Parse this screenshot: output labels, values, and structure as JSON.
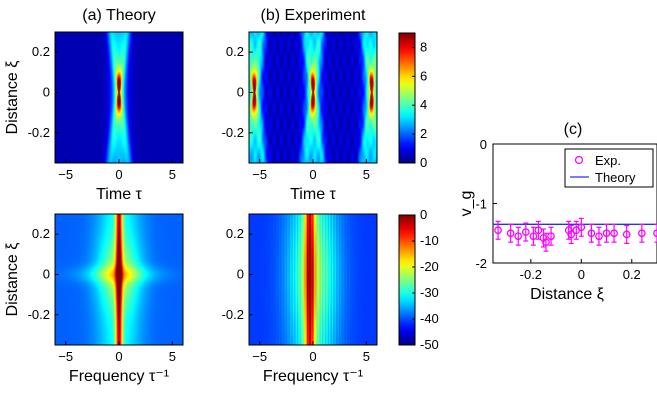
{
  "figure": {
    "colors": {
      "colormap": [
        "#00008f",
        "#0000ff",
        "#0080ff",
        "#00ffff",
        "#80ff80",
        "#ffff00",
        "#ff8000",
        "#ff0000",
        "#800000"
      ],
      "theory_line": "#2030ff",
      "exp_marker": "#ff00ff"
    }
  },
  "chart_data": [
    {
      "id": "a-top",
      "type": "heatmap",
      "title": "(a) Theory",
      "xlabel": "Time τ",
      "ylabel": "Distance ξ",
      "xlim": [
        -6,
        6
      ],
      "ylim": [
        -0.35,
        0.3
      ],
      "xticks": [
        "-5",
        "0",
        "5"
      ],
      "yticks": [
        "0.2",
        "0",
        "-0.2"
      ],
      "description_values": {
        "peak_positions_tau": [
          0
        ],
        "peak_xi": 0
      }
    },
    {
      "id": "b-top",
      "type": "heatmap",
      "title": "(b) Experiment",
      "xlabel": "Time τ",
      "ylabel": "",
      "xlim": [
        -6,
        6
      ],
      "ylim": [
        -0.35,
        0.3
      ],
      "xticks": [
        "-5",
        "0",
        "5"
      ],
      "yticks": [
        "0.2",
        "0",
        "-0.2"
      ],
      "colorbar": {
        "range": [
          0,
          9
        ],
        "ticks": [
          "8",
          "6",
          "4",
          "2",
          "0"
        ]
      },
      "description_values": {
        "peak_positions_tau": [
          -5.5,
          0,
          5.5
        ],
        "peak_xi": 0
      }
    },
    {
      "id": "a-bottom",
      "type": "heatmap",
      "title": "",
      "xlabel": "Frequency τ⁻¹",
      "ylabel": "Distance ξ",
      "xlim": [
        -6,
        6
      ],
      "ylim": [
        -0.35,
        0.3
      ],
      "xticks": [
        "-5",
        "0",
        "5"
      ],
      "yticks": [
        "0.2",
        "0",
        "-0.2"
      ]
    },
    {
      "id": "b-bottom",
      "type": "heatmap",
      "title": "",
      "xlabel": "Frequency τ⁻¹",
      "ylabel": "",
      "xlim": [
        -6,
        6
      ],
      "ylim": [
        -0.35,
        0.3
      ],
      "xticks": [
        "-5",
        "0",
        "5"
      ],
      "yticks": [
        "0.2",
        "0",
        "-0.2"
      ],
      "colorbar": {
        "range": [
          -50,
          0
        ],
        "ticks": [
          "0",
          "-10",
          "-20",
          "-30",
          "-40",
          "-50"
        ]
      }
    },
    {
      "id": "c",
      "type": "scatter",
      "title": "(c)",
      "xlabel": "Distance ξ",
      "ylabel": "v_g",
      "xlim": [
        -0.35,
        0.3
      ],
      "ylim": [
        -2,
        0
      ],
      "xticks": [
        "-0.2",
        "0",
        "0.2"
      ],
      "yticks": [
        "0",
        "-1",
        "-2"
      ],
      "legend": {
        "position": "top-right",
        "entries": [
          "Exp.",
          "Theory"
        ]
      },
      "series": [
        {
          "name": "Exp.",
          "style": "circle-errorbar",
          "x": [
            -0.33,
            -0.28,
            -0.25,
            -0.22,
            -0.19,
            -0.17,
            -0.15,
            -0.14,
            -0.12,
            -0.05,
            -0.04,
            -0.02,
            0.0,
            0.04,
            0.07,
            0.1,
            0.13,
            0.18,
            0.24,
            0.3
          ],
          "y": [
            -1.45,
            -1.5,
            -1.55,
            -1.48,
            -1.55,
            -1.45,
            -1.58,
            -1.65,
            -1.55,
            -1.45,
            -1.52,
            -1.45,
            -1.4,
            -1.5,
            -1.55,
            -1.5,
            -1.5,
            -1.52,
            -1.5,
            -1.5
          ],
          "err": [
            0.15,
            0.15,
            0.15,
            0.15,
            0.15,
            0.15,
            0.15,
            0.15,
            0.15,
            0.15,
            0.15,
            0.15,
            0.15,
            0.15,
            0.15,
            0.15,
            0.15,
            0.15,
            0.15,
            0.15
          ]
        },
        {
          "name": "Theory",
          "style": "line",
          "x": [
            -0.35,
            0.3
          ],
          "y": [
            -1.35,
            -1.35
          ]
        }
      ]
    }
  ]
}
